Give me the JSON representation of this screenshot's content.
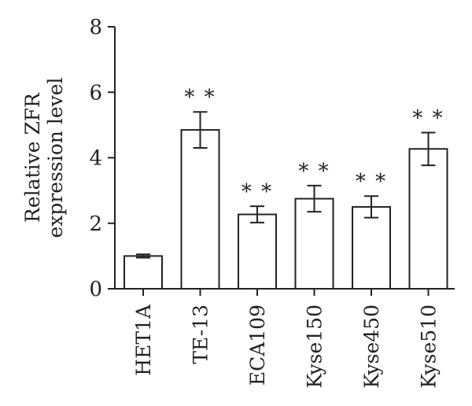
{
  "chart_data": {
    "type": "bar",
    "categories": [
      "HET1A",
      "TE-13",
      "ECA109",
      "Kyse150",
      "Kyse450",
      "Kyse510"
    ],
    "values": [
      1.0,
      4.85,
      2.27,
      2.75,
      2.5,
      4.27
    ],
    "errors": [
      0.05,
      0.55,
      0.25,
      0.4,
      0.33,
      0.5
    ],
    "annotations": [
      "",
      "**",
      "**",
      "**",
      "**",
      "**"
    ],
    "ylabel": [
      "Relative ZFR",
      "expression level"
    ],
    "ylim": [
      0,
      8
    ],
    "yticks": [
      0,
      2,
      4,
      6,
      8
    ],
    "grid": false,
    "legend": "none",
    "bar_fill": "#ffffff",
    "bar_stroke": "#222222"
  }
}
